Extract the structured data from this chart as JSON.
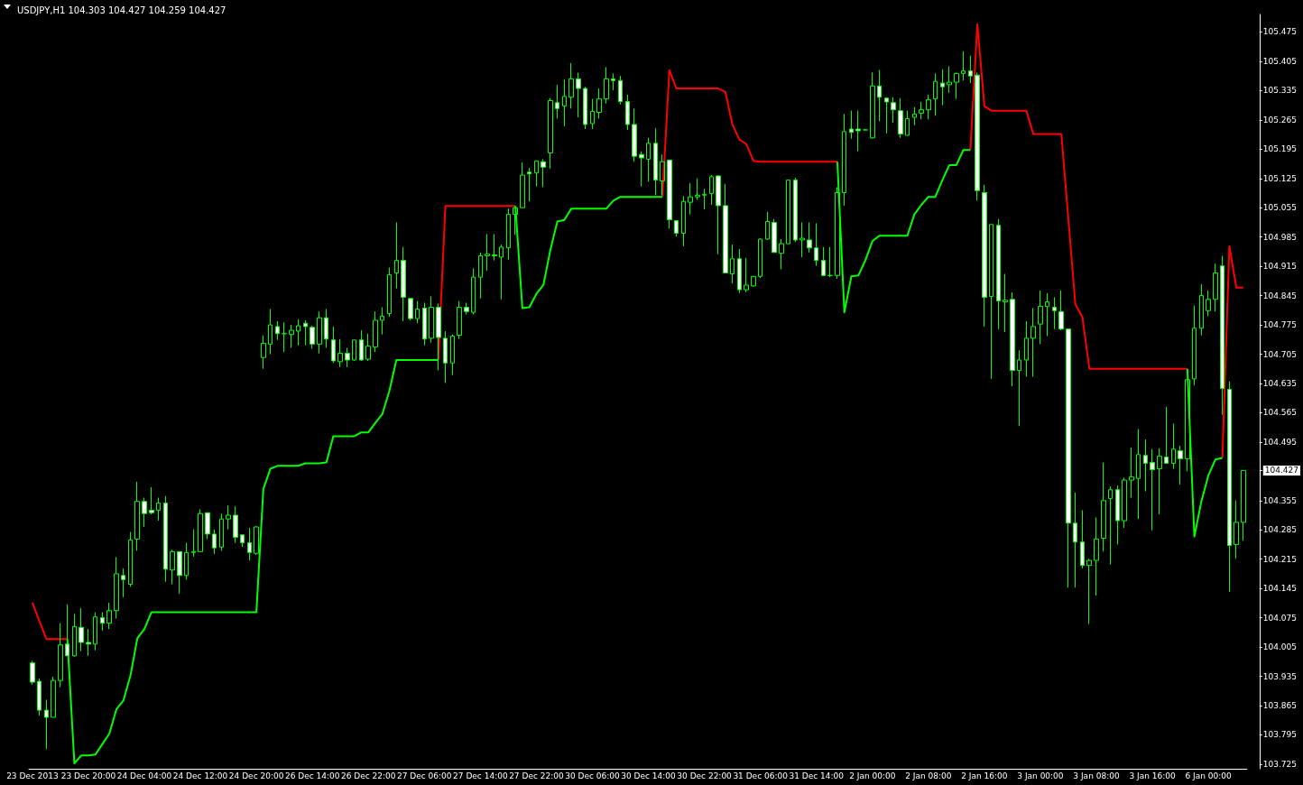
{
  "chart_data": {
    "type": "candlestick",
    "title": "USDJPY,H1 104.303 104.427 104.259 104.427",
    "color": "#00ff00",
    "marker": "none",
    "categories": [
      "23 Dec 2013",
      null,
      null,
      null,
      null,
      null,
      null,
      null,
      "23 Dec 20:00",
      null,
      null,
      null,
      null,
      null,
      null,
      null,
      "24 Dec 04:00",
      null,
      null,
      null,
      null,
      null,
      null,
      null,
      "24 Dec 12:00",
      null,
      null,
      null,
      null,
      null,
      null,
      null,
      "24 Dec 20:00",
      null,
      null,
      null,
      null,
      null,
      null,
      null,
      "26 Dec 14:00",
      null,
      null,
      null,
      null,
      null,
      null,
      null,
      "26 Dec 22:00",
      null,
      null,
      null,
      null,
      null,
      null,
      null,
      "27 Dec 06:00",
      null,
      null,
      null,
      null,
      null,
      null,
      null,
      "27 Dec 14:00",
      null,
      null,
      null,
      null,
      null,
      null,
      null,
      "27 Dec 22:00",
      null,
      null,
      null,
      null,
      null,
      null,
      null,
      "30 Dec 06:00",
      null,
      null,
      null,
      null,
      null,
      null,
      null,
      "30 Dec 14:00",
      null,
      null,
      null,
      null,
      null,
      null,
      null,
      "30 Dec 22:00",
      null,
      null,
      null,
      null,
      null,
      null,
      null,
      "31 Dec 06:00",
      null,
      null,
      null,
      null,
      null,
      null,
      null,
      "31 Dec 14:00",
      null,
      null,
      null,
      null,
      null,
      null,
      null,
      "2 Jan 00:00",
      null,
      null,
      null,
      null,
      null,
      null,
      null,
      "2 Jan 08:00",
      null,
      null,
      null,
      null,
      null,
      null,
      null,
      "2 Jan 16:00",
      null,
      null,
      null,
      null,
      null,
      null,
      null,
      "3 Jan 00:00",
      null,
      null,
      null,
      null,
      null,
      null,
      null,
      "3 Jan 08:00",
      null,
      null,
      null,
      null,
      null,
      null,
      null,
      "3 Jan 16:00",
      null,
      null,
      null,
      null,
      null,
      null,
      null,
      "6 Jan 00:00",
      null,
      null,
      null,
      null,
      null
    ],
    "ohlc": [
      [
        103.967,
        103.972,
        103.915,
        103.921
      ],
      [
        103.923,
        103.93,
        103.841,
        103.854
      ],
      [
        103.854,
        103.879,
        103.761,
        103.837
      ],
      [
        103.837,
        103.934,
        103.837,
        103.925
      ],
      [
        103.925,
        104.062,
        103.909,
        104.01
      ],
      [
        104.012,
        104.107,
        103.984,
        103.984
      ],
      [
        103.984,
        104.084,
        103.982,
        104.054
      ],
      [
        104.052,
        104.098,
        103.995,
        104.016
      ],
      [
        104.016,
        104.048,
        103.984,
        104.012
      ],
      [
        104.012,
        104.088,
        103.997,
        104.077
      ],
      [
        104.075,
        104.088,
        104.044,
        104.062
      ],
      [
        104.062,
        104.111,
        104.048,
        104.092
      ],
      [
        104.092,
        104.22,
        104.073,
        104.18
      ],
      [
        104.176,
        104.193,
        104.124,
        104.166
      ],
      [
        104.155,
        104.28,
        104.149,
        104.261
      ],
      [
        104.263,
        104.4,
        104.235,
        104.353
      ],
      [
        104.353,
        104.362,
        104.292,
        104.324
      ],
      [
        104.332,
        104.387,
        104.322,
        104.326
      ],
      [
        104.332,
        104.362,
        104.307,
        104.349
      ],
      [
        104.349,
        104.366,
        104.161,
        104.191
      ],
      [
        104.189,
        104.237,
        104.155,
        104.233
      ],
      [
        104.233,
        104.233,
        104.132,
        104.176
      ],
      [
        104.176,
        104.254,
        104.166,
        104.231
      ],
      [
        104.231,
        104.286,
        104.221,
        104.233
      ],
      [
        104.233,
        104.334,
        104.233,
        104.324
      ],
      [
        104.326,
        104.326,
        104.263,
        104.275
      ],
      [
        104.275,
        104.286,
        104.227,
        104.242
      ],
      [
        104.244,
        104.324,
        104.235,
        104.311
      ],
      [
        104.311,
        104.343,
        104.286,
        104.32
      ],
      [
        104.32,
        104.341,
        104.254,
        104.267
      ],
      [
        104.273,
        104.273,
        104.244,
        104.254
      ],
      [
        104.254,
        104.29,
        104.212,
        104.231
      ],
      [
        104.229,
        104.294,
        104.225,
        104.292
      ],
      [
        104.697,
        104.75,
        104.67,
        104.731
      ],
      [
        104.729,
        104.813,
        104.705,
        104.775
      ],
      [
        104.771,
        104.784,
        104.739,
        104.754
      ],
      [
        104.754,
        104.781,
        104.71,
        104.754
      ],
      [
        104.752,
        104.775,
        104.72,
        104.762
      ],
      [
        104.76,
        104.788,
        104.726,
        104.773
      ],
      [
        104.779,
        104.786,
        104.726,
        104.771
      ],
      [
        104.769,
        104.773,
        104.718,
        104.729
      ],
      [
        104.729,
        104.807,
        104.707,
        104.792
      ],
      [
        104.792,
        104.813,
        104.72,
        104.741
      ],
      [
        104.739,
        104.771,
        104.684,
        104.689
      ],
      [
        104.687,
        104.741,
        104.674,
        104.707
      ],
      [
        104.707,
        104.72,
        104.674,
        104.691
      ],
      [
        104.691,
        104.739,
        104.689,
        104.739
      ],
      [
        104.739,
        104.762,
        104.689,
        104.691
      ],
      [
        104.693,
        104.754,
        104.689,
        104.724
      ],
      [
        104.722,
        104.807,
        104.71,
        104.786
      ],
      [
        104.786,
        104.817,
        104.752,
        104.796
      ],
      [
        104.802,
        104.912,
        104.794,
        104.895
      ],
      [
        104.899,
        105.02,
        104.862,
        104.929
      ],
      [
        104.929,
        104.961,
        104.784,
        104.841
      ],
      [
        104.838,
        104.838,
        104.786,
        104.79
      ],
      [
        104.79,
        104.832,
        104.779,
        104.813
      ],
      [
        104.815,
        104.828,
        104.726,
        104.741
      ],
      [
        104.743,
        104.843,
        104.733,
        104.817
      ],
      [
        104.817,
        104.826,
        104.666,
        104.745
      ],
      [
        104.743,
        104.76,
        104.636,
        104.684
      ],
      [
        104.684,
        104.752,
        104.655,
        104.748
      ],
      [
        104.75,
        104.832,
        104.741,
        104.817
      ],
      [
        104.817,
        104.828,
        104.8,
        104.807
      ],
      [
        104.805,
        104.91,
        104.8,
        104.889
      ],
      [
        104.889,
        104.948,
        104.838,
        104.94
      ],
      [
        104.94,
        104.992,
        104.904,
        104.944
      ],
      [
        104.942,
        104.992,
        104.929,
        104.94
      ],
      [
        104.937,
        104.967,
        104.836,
        104.961
      ],
      [
        104.959,
        105.053,
        104.931,
        105.039
      ],
      [
        105.039,
        105.058,
        104.99,
        105.055
      ],
      [
        105.055,
        105.163,
        105.055,
        105.133
      ],
      [
        105.14,
        105.15,
        105.07,
        105.136
      ],
      [
        105.138,
        105.167,
        105.106,
        105.167
      ],
      [
        105.165,
        105.171,
        105.104,
        105.152
      ],
      [
        105.186,
        105.317,
        105.148,
        105.311
      ],
      [
        105.306,
        105.349,
        105.268,
        105.292
      ],
      [
        105.298,
        105.361,
        105.25,
        105.321
      ],
      [
        105.319,
        105.401,
        105.292,
        105.363
      ],
      [
        105.363,
        105.378,
        105.271,
        105.34
      ],
      [
        105.34,
        105.344,
        105.243,
        105.254
      ],
      [
        105.256,
        105.315,
        105.243,
        105.285
      ],
      [
        105.283,
        105.34,
        105.268,
        105.315
      ],
      [
        105.315,
        105.391,
        105.304,
        105.363
      ],
      [
        105.363,
        105.376,
        105.336,
        105.359
      ],
      [
        105.359,
        105.37,
        105.302,
        105.309
      ],
      [
        105.309,
        105.325,
        105.241,
        105.254
      ],
      [
        105.254,
        105.292,
        105.165,
        105.178
      ],
      [
        105.182,
        105.19,
        105.106,
        105.174
      ],
      [
        105.171,
        105.222,
        105.117,
        105.209
      ],
      [
        105.209,
        105.245,
        105.085,
        105.121
      ],
      [
        105.119,
        105.182,
        105.085,
        105.165
      ],
      [
        105.169,
        105.169,
        105.005,
        105.026
      ],
      [
        105.024,
        105.024,
        104.986,
        104.994
      ],
      [
        104.994,
        105.083,
        104.963,
        105.07
      ],
      [
        105.068,
        105.114,
        105.039,
        105.081
      ],
      [
        105.081,
        105.125,
        105.074,
        105.085
      ],
      [
        105.085,
        105.1,
        105.051,
        105.087
      ],
      [
        105.089,
        105.133,
        105.062,
        105.129
      ],
      [
        105.131,
        105.133,
        104.944,
        105.06
      ],
      [
        105.06,
        105.112,
        104.899,
        104.899
      ],
      [
        104.897,
        104.967,
        104.874,
        104.933
      ],
      [
        104.933,
        104.956,
        104.851,
        104.859
      ],
      [
        104.859,
        104.935,
        104.853,
        104.87
      ],
      [
        104.868,
        104.891,
        104.866,
        104.891
      ],
      [
        104.891,
        104.982,
        104.887,
        104.98
      ],
      [
        104.98,
        105.045,
        104.978,
        105.022
      ],
      [
        105.02,
        105.028,
        104.948,
        104.948
      ],
      [
        104.946,
        104.98,
        104.908,
        104.969
      ],
      [
        104.969,
        105.121,
        104.969,
        105.121
      ],
      [
        105.121,
        105.127,
        104.973,
        104.978
      ],
      [
        104.978,
        105.02,
        104.937,
        104.982
      ],
      [
        104.978,
        105.02,
        104.948,
        104.959
      ],
      [
        104.959,
        105.018,
        104.916,
        104.929
      ],
      [
        104.929,
        104.961,
        104.891,
        104.893
      ],
      [
        104.893,
        104.961,
        104.889,
        104.893
      ],
      [
        104.893,
        105.104,
        104.885,
        105.091
      ],
      [
        105.091,
        105.279,
        105.06,
        105.237
      ],
      [
        105.243,
        105.287,
        105.22,
        105.235
      ],
      [
        105.243,
        105.287,
        105.19,
        105.239
      ],
      [
        105.241,
        105.243,
        105.241,
        105.241
      ],
      [
        105.222,
        105.378,
        105.22,
        105.346
      ],
      [
        105.346,
        105.384,
        105.262,
        105.319
      ],
      [
        105.317,
        105.319,
        105.233,
        105.308
      ],
      [
        105.306,
        105.319,
        105.258,
        105.289
      ],
      [
        105.287,
        105.317,
        105.222,
        105.231
      ],
      [
        105.228,
        105.287,
        105.228,
        105.268
      ],
      [
        105.271,
        105.296,
        105.252,
        105.279
      ],
      [
        105.281,
        105.308,
        105.266,
        105.289
      ],
      [
        105.289,
        105.325,
        105.266,
        105.313
      ],
      [
        105.315,
        105.376,
        105.275,
        105.357
      ],
      [
        105.353,
        105.386,
        105.3,
        105.344
      ],
      [
        105.349,
        105.393,
        105.33,
        105.355
      ],
      [
        105.355,
        105.378,
        105.315,
        105.376
      ],
      [
        105.376,
        105.429,
        105.359,
        105.382
      ],
      [
        105.382,
        105.418,
        105.353,
        105.37
      ],
      [
        105.372,
        105.378,
        105.072,
        105.096
      ],
      [
        105.091,
        105.11,
        104.771,
        104.841
      ],
      [
        104.843,
        105.015,
        104.646,
        105.015
      ],
      [
        105.013,
        105.028,
        104.765,
        104.832
      ],
      [
        104.83,
        104.897,
        104.758,
        104.834
      ],
      [
        104.836,
        104.853,
        104.628,
        104.666
      ],
      [
        104.666,
        104.714,
        104.533,
        104.691
      ],
      [
        104.691,
        104.784,
        104.651,
        104.743
      ],
      [
        104.743,
        104.815,
        104.651,
        104.771
      ],
      [
        104.777,
        104.857,
        104.729,
        104.819
      ],
      [
        104.819,
        104.851,
        104.748,
        104.83
      ],
      [
        104.817,
        104.841,
        104.765,
        104.809
      ],
      [
        104.807,
        104.857,
        104.762,
        104.765
      ],
      [
        104.765,
        104.767,
        104.147,
        104.301
      ],
      [
        104.301,
        104.374,
        104.147,
        104.256
      ],
      [
        104.256,
        104.332,
        104.193,
        104.2
      ],
      [
        104.2,
        104.216,
        104.06,
        104.212
      ],
      [
        104.212,
        104.315,
        104.128,
        104.263
      ],
      [
        104.265,
        104.446,
        104.233,
        104.355
      ],
      [
        104.36,
        104.389,
        104.202,
        104.381
      ],
      [
        104.381,
        104.391,
        104.25,
        104.307
      ],
      [
        104.307,
        104.41,
        104.29,
        104.404
      ],
      [
        104.404,
        104.482,
        104.362,
        104.412
      ],
      [
        104.408,
        104.526,
        104.311,
        104.465
      ],
      [
        104.463,
        104.501,
        104.377,
        104.444
      ],
      [
        104.446,
        104.478,
        104.284,
        104.429
      ],
      [
        104.431,
        104.48,
        104.322,
        104.461
      ],
      [
        104.459,
        104.579,
        104.444,
        104.444
      ],
      [
        104.444,
        104.539,
        104.431,
        104.478
      ],
      [
        104.474,
        104.486,
        104.393,
        104.455
      ],
      [
        104.455,
        104.644,
        104.425,
        104.644
      ],
      [
        104.646,
        104.821,
        104.63,
        104.767
      ],
      [
        104.767,
        104.872,
        104.75,
        104.845
      ],
      [
        104.809,
        104.857,
        104.796,
        104.836
      ],
      [
        104.836,
        104.921,
        104.807,
        104.899
      ],
      [
        104.916,
        104.94,
        104.56,
        104.623
      ],
      [
        104.621,
        104.64,
        104.137,
        104.248
      ],
      [
        104.25,
        104.355,
        104.216,
        104.303
      ],
      [
        104.303,
        104.427,
        104.259,
        104.427
      ]
    ],
    "series": [
      {
        "type": "line",
        "color": "#ff0000",
        "values": [
          104.111,
          104.067,
          104.024,
          104.024,
          104.024,
          104.024,
          null,
          null,
          null,
          null,
          null,
          null,
          null,
          null,
          null,
          null,
          null,
          null,
          null,
          null,
          null,
          null,
          null,
          null,
          null,
          null,
          null,
          null,
          null,
          null,
          null,
          null,
          null,
          null,
          null,
          null,
          null,
          null,
          null,
          null,
          null,
          null,
          null,
          null,
          null,
          null,
          null,
          null,
          null,
          null,
          null,
          null,
          null,
          null,
          null,
          null,
          null,
          null,
          104.691,
          105.059,
          105.059,
          105.059,
          105.059,
          105.059,
          105.059,
          105.059,
          105.059,
          105.059,
          105.059,
          105.059,
          null,
          null,
          null,
          null,
          null,
          null,
          null,
          null,
          null,
          null,
          null,
          null,
          null,
          null,
          null,
          null,
          null,
          null,
          null,
          null,
          105.081,
          105.384,
          105.34,
          105.34,
          105.34,
          105.34,
          105.34,
          105.34,
          105.34,
          105.332,
          105.254,
          105.218,
          105.207,
          105.167,
          105.165,
          105.165,
          105.165,
          105.165,
          105.165,
          105.165,
          105.165,
          105.165,
          105.165,
          105.165,
          105.165,
          105.165,
          null,
          null,
          null,
          null,
          null,
          null,
          null,
          null,
          null,
          null,
          null,
          null,
          null,
          null,
          null,
          null,
          null,
          null,
          105.193,
          105.494,
          105.298,
          105.287,
          105.287,
          105.287,
          105.287,
          105.287,
          105.287,
          105.231,
          105.231,
          105.231,
          105.231,
          105.231,
          105.028,
          104.824,
          104.794,
          104.67,
          104.67,
          104.67,
          104.67,
          104.67,
          104.67,
          104.67,
          104.67,
          104.67,
          104.67,
          104.67,
          104.67,
          104.67,
          104.67,
          104.67,
          null,
          null,
          null,
          null,
          104.457,
          104.963,
          104.864,
          104.864
        ]
      },
      {
        "type": "line",
        "color": "#00ff00",
        "values": [
          null,
          null,
          null,
          null,
          null,
          104.024,
          103.727,
          103.746,
          103.746,
          103.748,
          103.773,
          103.798,
          103.856,
          103.877,
          103.936,
          104.026,
          104.048,
          104.088,
          104.088,
          104.088,
          104.088,
          104.088,
          104.088,
          104.088,
          104.088,
          104.088,
          104.088,
          104.088,
          104.088,
          104.088,
          104.088,
          104.088,
          104.088,
          104.383,
          104.431,
          104.438,
          104.438,
          104.438,
          104.438,
          104.444,
          104.444,
          104.444,
          104.446,
          104.509,
          104.509,
          104.509,
          104.509,
          104.518,
          104.518,
          104.541,
          104.562,
          104.617,
          104.691,
          104.691,
          104.691,
          104.691,
          104.691,
          104.691,
          104.691,
          null,
          null,
          null,
          null,
          null,
          null,
          null,
          null,
          null,
          null,
          105.059,
          104.815,
          104.817,
          104.849,
          104.87,
          104.954,
          105.022,
          105.026,
          105.053,
          105.053,
          105.053,
          105.053,
          105.053,
          105.053,
          105.072,
          105.081,
          105.081,
          105.081,
          105.081,
          105.081,
          105.081,
          105.081,
          null,
          null,
          null,
          null,
          null,
          null,
          null,
          null,
          null,
          null,
          null,
          null,
          null,
          null,
          null,
          null,
          null,
          null,
          null,
          null,
          null,
          null,
          null,
          null,
          105.165,
          104.805,
          104.891,
          104.893,
          104.929,
          104.975,
          104.988,
          104.988,
          104.988,
          104.988,
          104.988,
          105.039,
          105.062,
          105.081,
          105.081,
          105.121,
          105.157,
          105.157,
          105.193,
          105.193,
          null,
          null,
          null,
          null,
          null,
          null,
          null,
          null,
          null,
          null,
          null,
          null,
          null,
          null,
          null,
          null,
          null,
          null,
          null,
          null,
          null,
          null,
          null,
          null,
          null,
          null,
          null,
          null,
          null,
          null,
          104.67,
          104.269,
          104.353,
          104.415,
          104.453,
          104.457,
          null,
          null,
          null
        ]
      }
    ],
    "ylim": [
      103.714,
      105.517
    ],
    "yticks": [
      103.725,
      103.795,
      103.865,
      103.935,
      104.005,
      104.075,
      104.145,
      104.215,
      104.285,
      104.355,
      {
        "value": 104.427,
        "label": "104.427"
      },
      104.495,
      104.565,
      104.635,
      104.705,
      104.775,
      104.845,
      104.915,
      104.985,
      105.055,
      105.125,
      105.195,
      105.265,
      105.335,
      105.405,
      105.475
    ]
  }
}
